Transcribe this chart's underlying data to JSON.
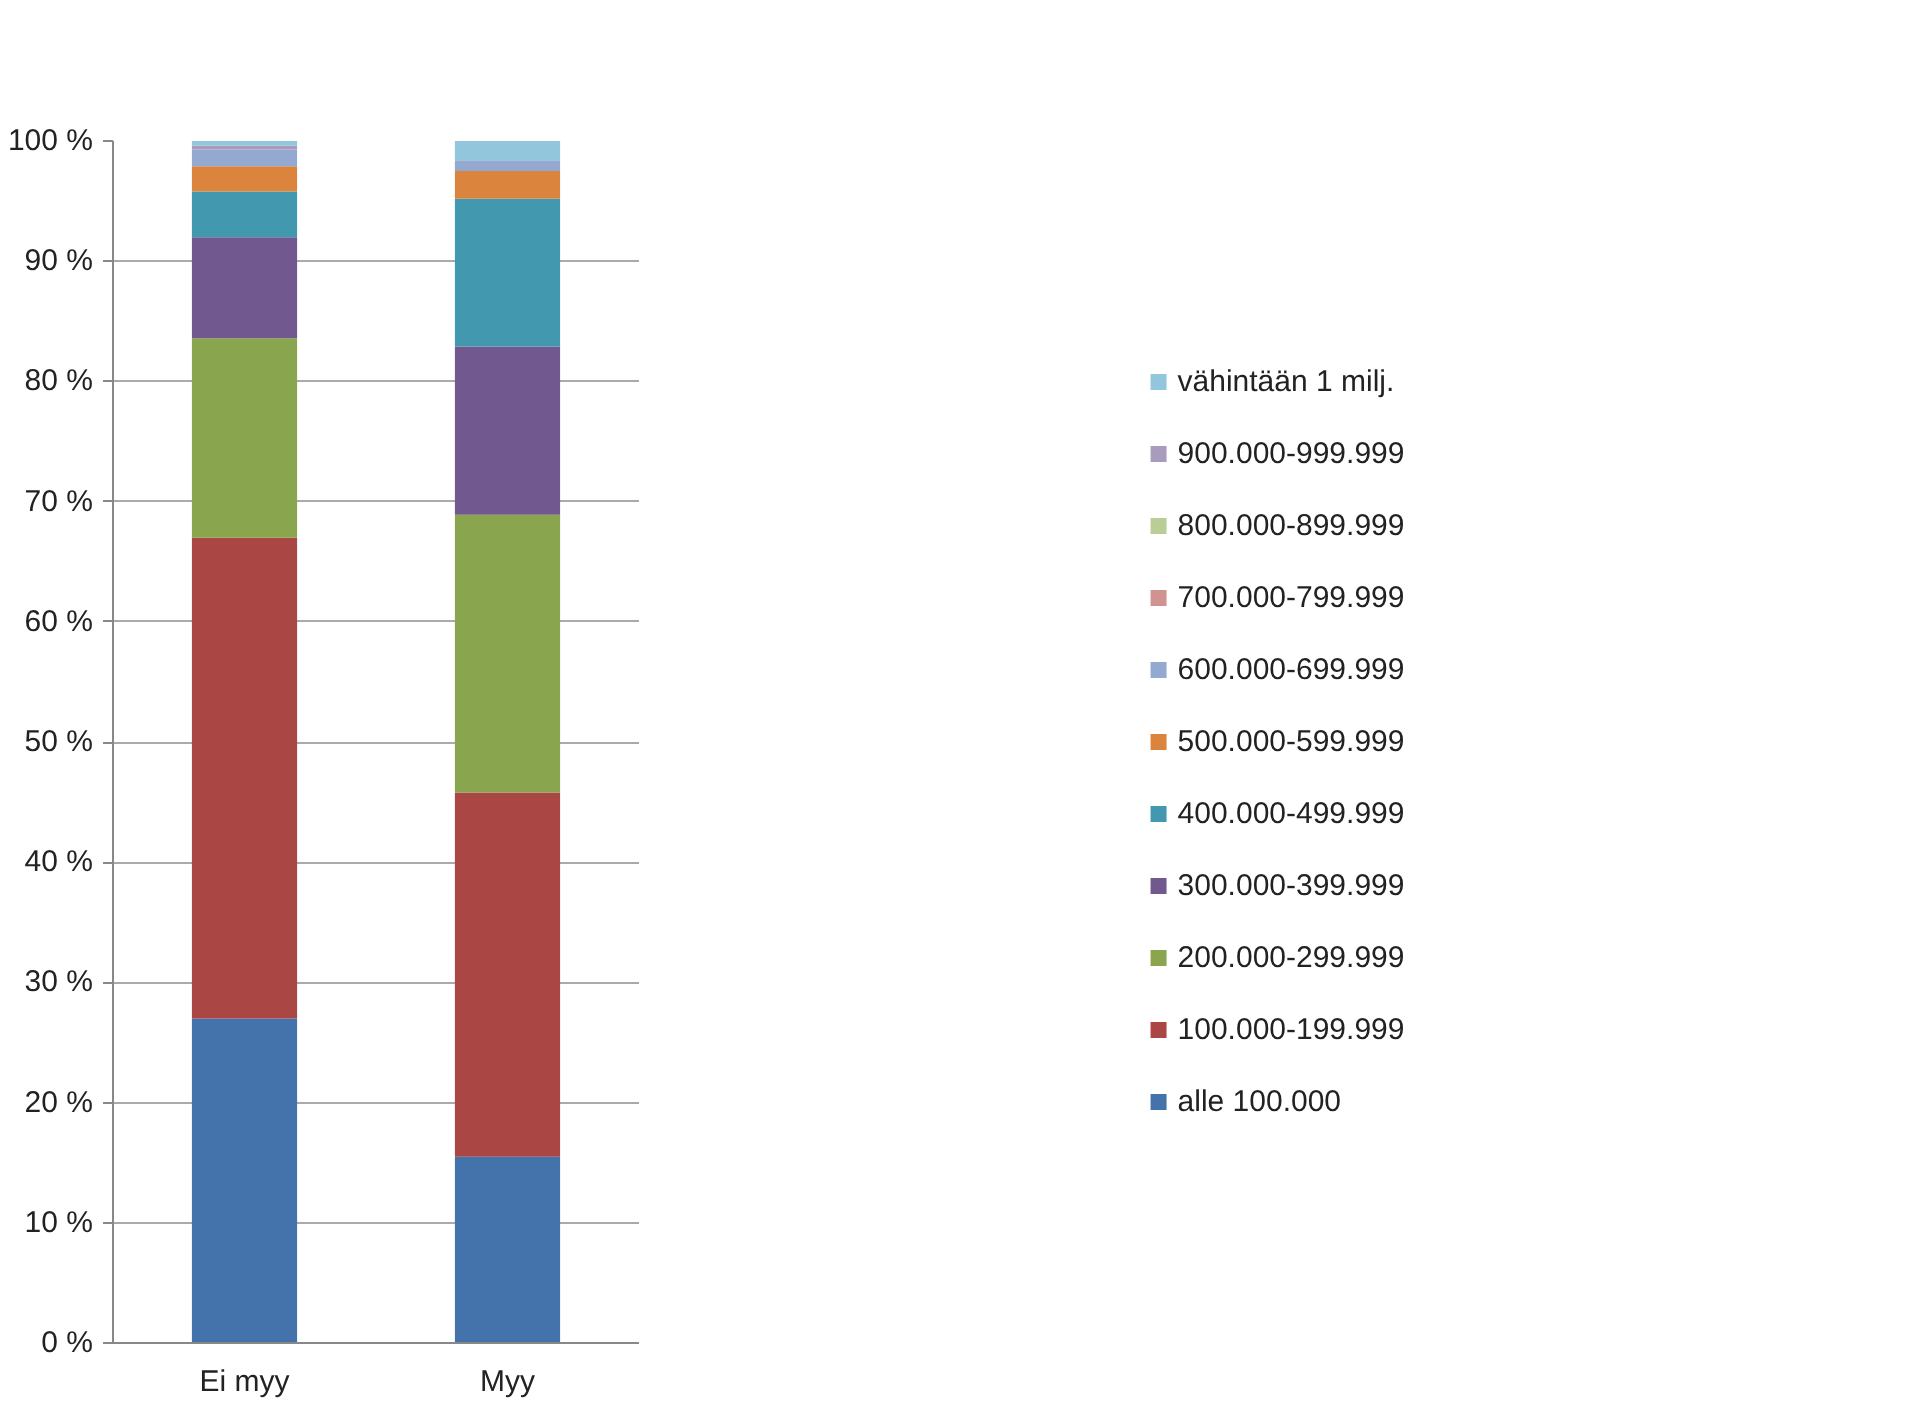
{
  "chart_data": {
    "type": "bar",
    "stacked": true,
    "categories": [
      "Ei myy",
      "Myy"
    ],
    "series": [
      {
        "name": "alle 100.000",
        "color": "#4472aa",
        "values": [
          27,
          15.5
        ]
      },
      {
        "name": "100.000-199.999",
        "color": "#aa4643",
        "values": [
          40,
          30.3
        ]
      },
      {
        "name": "200.000-299.999",
        "color": "#89a54e",
        "values": [
          16.6,
          23.1
        ]
      },
      {
        "name": "300.000-399.999",
        "color": "#71588f",
        "values": [
          8.4,
          14
        ]
      },
      {
        "name": "400.000-499.999",
        "color": "#4198af",
        "values": [
          3.8,
          12.3
        ]
      },
      {
        "name": "500.000-599.999",
        "color": "#db843d",
        "values": [
          2.1,
          2.3
        ]
      },
      {
        "name": "600.000-699.999",
        "color": "#93a9cf",
        "values": [
          1.4,
          0.9
        ]
      },
      {
        "name": "700.000-799.999",
        "color": "#d19392",
        "values": [
          0,
          0
        ]
      },
      {
        "name": "800.000-899.999",
        "color": "#b9cd96",
        "values": [
          0,
          0
        ]
      },
      {
        "name": "900.000-999.999",
        "color": "#a99bbd",
        "values": [
          0.3,
          0
        ]
      },
      {
        "name": "vähintään 1 milj.",
        "color": "#92c6dc",
        "values": [
          0.4,
          1.6
        ]
      }
    ],
    "ylim": [
      0,
      100
    ],
    "yticks": [
      {
        "value": 0,
        "label": "0 %"
      },
      {
        "value": 10,
        "label": "10 %"
      },
      {
        "value": 20,
        "label": "20 %"
      },
      {
        "value": 30,
        "label": "30 %"
      },
      {
        "value": 40,
        "label": "40 %"
      },
      {
        "value": 50,
        "label": "50 %"
      },
      {
        "value": 60,
        "label": "60 %"
      },
      {
        "value": 70,
        "label": "70 %"
      },
      {
        "value": 80,
        "label": "80 %"
      },
      {
        "value": 90,
        "label": "90 %"
      },
      {
        "value": 100,
        "label": "100 %"
      }
    ],
    "grid": "y",
    "legend": "right"
  }
}
